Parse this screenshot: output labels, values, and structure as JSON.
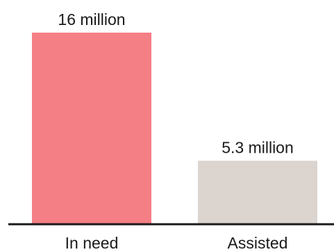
{
  "chart_data": {
    "type": "bar",
    "categories": [
      "In need",
      "Assisted"
    ],
    "values": [
      16,
      5.3
    ],
    "data_labels": [
      "16 million",
      "5.3 million"
    ],
    "colors": [
      "#f47f85",
      "#dbd4cf"
    ],
    "axis_color": "#1a1a1a",
    "ylim": [
      0,
      16
    ],
    "grid": false,
    "legend": "none"
  }
}
